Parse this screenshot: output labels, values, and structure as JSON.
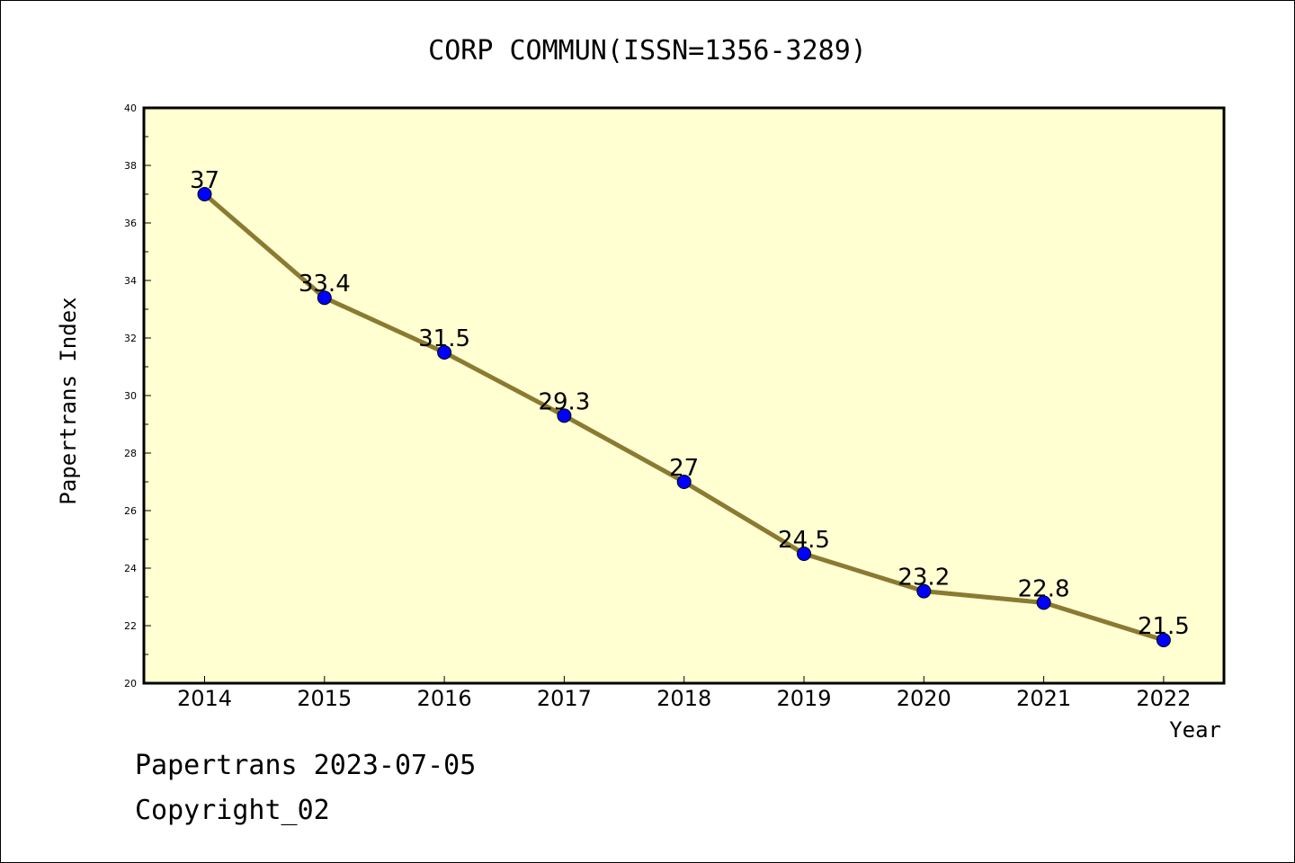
{
  "chart_data": {
    "type": "line",
    "title": "CORP COMMUN(ISSN=1356-3289)",
    "xlabel": "Year",
    "ylabel": "Papertrans Index",
    "categories": [
      "2014",
      "2015",
      "2016",
      "2017",
      "2018",
      "2019",
      "2020",
      "2021",
      "2022"
    ],
    "values": [
      37,
      33.4,
      31.5,
      29.3,
      27,
      24.5,
      23.2,
      22.8,
      21.5
    ],
    "data_labels": [
      "37",
      "33.4",
      "31.5",
      "29.3",
      "27",
      "24.5",
      "23.2",
      "22.8",
      "21.5"
    ],
    "ylim": [
      20,
      40
    ],
    "yticks": [
      "20",
      "22",
      "24",
      "26",
      "28",
      "30",
      "32",
      "34",
      "36",
      "38",
      "40"
    ],
    "grid": false,
    "colors": {
      "plot_background": "#ffffd2",
      "line": "#8b7a32",
      "marker": "#0000ff"
    }
  },
  "footer": {
    "line1": "Papertrans 2023-07-05",
    "line2": "Copyright_02"
  }
}
